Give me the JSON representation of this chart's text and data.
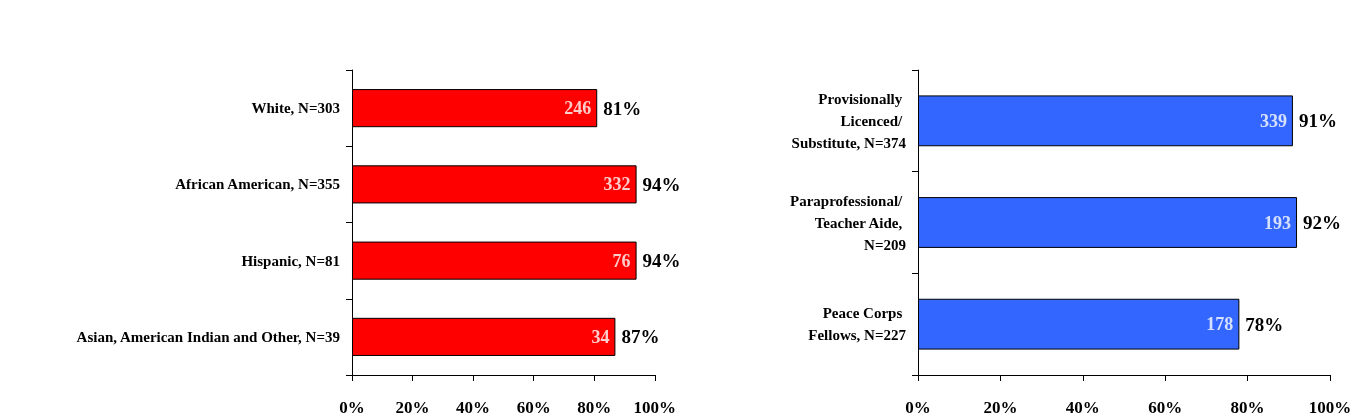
{
  "chart_data": [
    {
      "type": "bar",
      "orientation": "horizontal",
      "categories": [
        "White, N=303",
        "African American, N=355",
        "Hispanic, N=81",
        "Asian, American Indian and Other, N=39"
      ],
      "values": [
        81,
        94,
        94,
        87
      ],
      "value_labels": [
        "81%",
        "94%",
        "94%",
        "87%"
      ],
      "color": "#ff0000",
      "xlim": [
        0,
        100
      ],
      "xticks": [
        {
          "value": 0,
          "label": "0%"
        },
        {
          "value": 20,
          "label": "20%"
        },
        {
          "value": 40,
          "label": "40%"
        },
        {
          "value": 60,
          "label": "60%"
        },
        {
          "value": 80,
          "label": "80%"
        },
        {
          "value": 100,
          "label": "100%"
        }
      ],
      "annotations": [
        "246",
        "332",
        "76",
        "34"
      ],
      "grid": false
    },
    {
      "type": "bar",
      "orientation": "horizontal",
      "categories": [
        "Provisionally Licenced/ Substitute, N=374",
        "Paraprofessional/ Teacher Aide, N=209",
        "Peace Corps Fellows, N=227"
      ],
      "values": [
        91,
        92,
        78
      ],
      "value_labels": [
        "91%",
        "92%",
        "78%"
      ],
      "color": "#3366ff",
      "xlim": [
        0,
        100
      ],
      "xticks": [
        {
          "value": 0,
          "label": "0%"
        },
        {
          "value": 20,
          "label": "20%"
        },
        {
          "value": 40,
          "label": "40%"
        },
        {
          "value": 60,
          "label": "60%"
        },
        {
          "value": 80,
          "label": "80%"
        },
        {
          "value": 100,
          "label": "100%"
        }
      ],
      "annotations": [
        "339",
        "193",
        "178"
      ],
      "grid": false
    }
  ]
}
